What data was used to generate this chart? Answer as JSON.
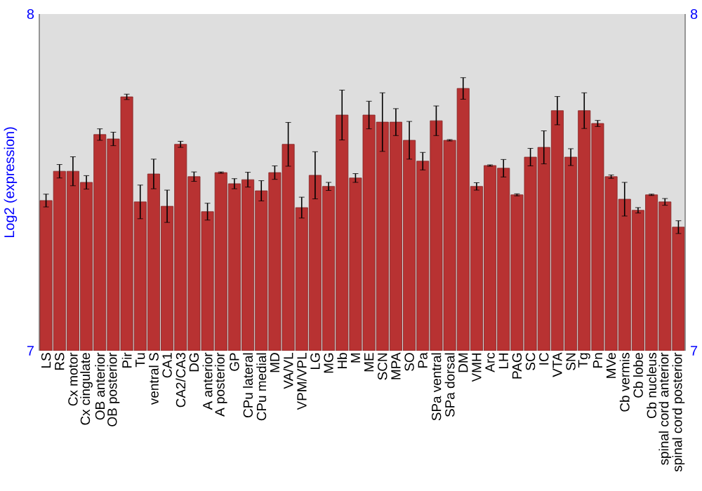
{
  "chart_data": {
    "type": "bar",
    "ylabel": "Log2 (expression)",
    "categories": [
      "LS",
      "RS",
      "Cx motor",
      "Cx cingulate",
      "OB anterior",
      "OB posterior",
      "Pir",
      "Tu",
      "ventral S",
      "CA1",
      "CA2/CA3",
      "DG",
      "A anterior",
      "A posterior",
      "GP",
      "CPu lateral",
      "CPu medial",
      "MD",
      "VA/VL",
      "VPM/VPL",
      "LG",
      "MG",
      "Hb",
      "M",
      "ME",
      "SCN",
      "MPA",
      "SO",
      "Pa",
      "SPa ventral",
      "SPa dorsal",
      "DM",
      "VMH",
      "Arc",
      "LH",
      "PAG",
      "SC",
      "IC",
      "VTA",
      "SN",
      "Tg",
      "Pn",
      "MVe",
      "Cb vermis",
      "Cb lobe",
      "Cb nucleus",
      "spinal cord anterior",
      "spinal cord posterior"
    ],
    "values": [
      7.446,
      7.533,
      7.533,
      7.5,
      7.642,
      7.629,
      7.754,
      7.442,
      7.525,
      7.429,
      7.613,
      7.517,
      7.413,
      7.529,
      7.496,
      7.508,
      7.475,
      7.529,
      7.613,
      7.425,
      7.521,
      7.488,
      7.7,
      7.513,
      7.7,
      7.679,
      7.679,
      7.625,
      7.563,
      7.683,
      7.625,
      7.779,
      7.488,
      7.55,
      7.542,
      7.463,
      7.575,
      7.604,
      7.713,
      7.575,
      7.713,
      7.675,
      7.517,
      7.45,
      7.417,
      7.463,
      7.442,
      7.367
    ],
    "errors": [
      0.019,
      0.02,
      0.043,
      0.02,
      0.017,
      0.02,
      0.008,
      0.05,
      0.044,
      0.048,
      0.009,
      0.014,
      0.025,
      0.002,
      0.015,
      0.022,
      0.03,
      0.02,
      0.065,
      0.031,
      0.07,
      0.012,
      0.074,
      0.013,
      0.041,
      0.087,
      0.04,
      0.056,
      0.026,
      0.044,
      0.002,
      0.032,
      0.011,
      0.002,
      0.026,
      0.003,
      0.026,
      0.049,
      0.042,
      0.025,
      0.053,
      0.009,
      0.005,
      0.05,
      0.008,
      0.002,
      0.01,
      0.019
    ],
    "color": "#b83232",
    "ylim": [
      7,
      8
    ],
    "yticks": [
      7,
      8
    ],
    "y2lim": [
      7,
      8
    ],
    "y2ticks": [
      7,
      8
    ]
  }
}
